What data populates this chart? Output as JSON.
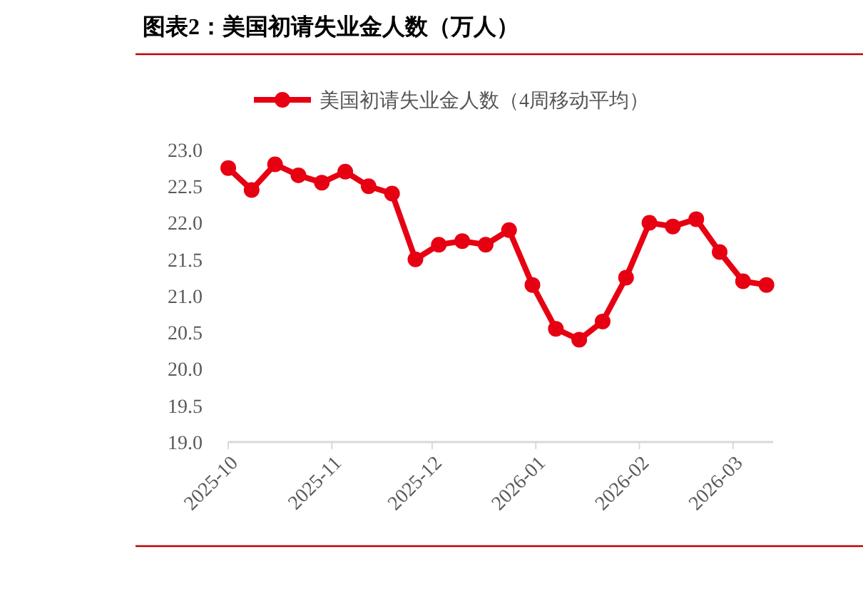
{
  "chart_data": {
    "type": "line",
    "title": "图表2：美国初请失业金人数（万人）",
    "x": [
      "2025-10-01",
      "2025-10-08",
      "2025-10-15",
      "2025-10-22",
      "2025-10-29",
      "2025-11-05",
      "2025-11-12",
      "2025-11-19",
      "2025-11-26",
      "2025-12-03",
      "2025-12-10",
      "2025-12-17",
      "2025-12-24",
      "2025-12-31",
      "2026-01-07",
      "2026-01-14",
      "2026-01-21",
      "2026-01-28",
      "2026-02-04",
      "2026-02-11",
      "2026-02-18",
      "2026-02-25",
      "2026-03-04",
      "2026-03-11"
    ],
    "series": [
      {
        "name": "美国初请失业金人数（4周移动平均）",
        "color": "#e60012",
        "values": [
          22.75,
          22.45,
          22.8,
          22.65,
          22.55,
          22.7,
          22.5,
          22.4,
          21.5,
          21.7,
          21.75,
          21.7,
          21.9,
          21.15,
          20.55,
          20.4,
          20.65,
          21.25,
          22.0,
          21.95,
          22.05,
          21.6,
          21.2,
          21.15
        ]
      }
    ],
    "xlim": [
      "2025-10-01",
      "2026-03-13"
    ],
    "xticks": [
      {
        "value": "2025-10-01",
        "label": "2025-10"
      },
      {
        "value": "2025-11-01",
        "label": "2025-11"
      },
      {
        "value": "2025-12-01",
        "label": "2025-12"
      },
      {
        "value": "2026-01-01",
        "label": "2026-01"
      },
      {
        "value": "2026-02-01",
        "label": "2026-02"
      },
      {
        "value": "2026-03-01",
        "label": "2026-03"
      }
    ],
    "ylim": [
      19,
      23
    ],
    "yticks": [
      {
        "value": 19,
        "label": "19.0"
      },
      {
        "value": 19.5,
        "label": "19.5"
      },
      {
        "value": 20,
        "label": "20.0"
      },
      {
        "value": 20.5,
        "label": "20.5"
      },
      {
        "value": 21,
        "label": "21.0"
      },
      {
        "value": 21.5,
        "label": "21.5"
      },
      {
        "value": 22,
        "label": "22.0"
      },
      {
        "value": 22.5,
        "label": "22.5"
      },
      {
        "value": 23,
        "label": "23.0"
      }
    ],
    "grid": false,
    "legend": "top",
    "marker": "circle",
    "line_style": "solid"
  }
}
